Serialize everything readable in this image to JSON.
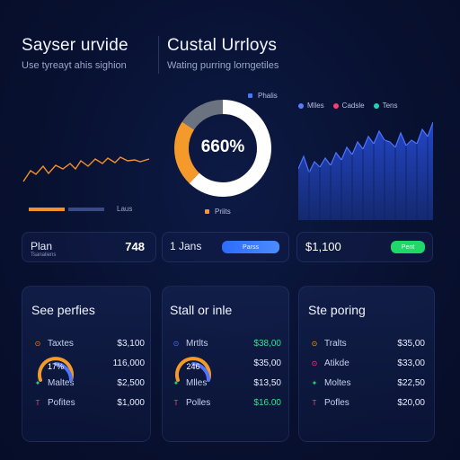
{
  "header": {
    "left_title": "Sayser urvide",
    "left_subtitle": "Use tyreayt ahis sighion",
    "right_title": "Custal Urrloys",
    "right_subtitle": "Wating purring lorngetiles"
  },
  "donut": {
    "center_label": "660%",
    "top_label": "Phalis",
    "bottom_label": "Priits",
    "colors": {
      "orange": "#f39a2a",
      "white": "#ffffff",
      "gray": "#6b7280"
    },
    "segments": [
      {
        "name": "white",
        "value": 0.62
      },
      {
        "name": "orange",
        "value": 0.22
      },
      {
        "name": "gray",
        "value": 0.16
      }
    ]
  },
  "left_chart": {
    "axis_label": "Laus",
    "color": "#f2902b",
    "bar_fill": 0.45
  },
  "area_chart": {
    "legend": [
      {
        "label": "Mlles",
        "color": "#5a7cff"
      },
      {
        "label": "Cadsle",
        "color": "#ff3d72"
      },
      {
        "label": "Tens",
        "color": "#23d4b0"
      }
    ],
    "fill_color": "#1c3aa8",
    "line_color": "#4e73ff"
  },
  "summary": {
    "item1": {
      "label": "Plan",
      "small": "Tsanaliens",
      "value": "748"
    },
    "item2": {
      "label": "1 Jans",
      "button": "Parss"
    },
    "item3": {
      "value": "$1,100",
      "button": "Pent"
    }
  },
  "cards": [
    {
      "title": "See perfies",
      "gauge_label": "17%",
      "rows": [
        {
          "icon": "⊙",
          "icon_color": "#ff7a2a",
          "label": "Taxtes",
          "value": "$3,100",
          "value_green": false
        },
        {
          "icon": "",
          "icon_color": "",
          "label": "",
          "value": "116,000",
          "value_green": false
        },
        {
          "icon": "✦",
          "icon_color": "#24d07a",
          "label": "Maltes",
          "value": "$2,500",
          "value_green": false
        },
        {
          "icon": "T",
          "icon_color": "#ff3d72",
          "label": "Pofites",
          "value": "$1,000",
          "value_green": false
        }
      ]
    },
    {
      "title": "Stall or inle",
      "gauge_label": "246",
      "rows": [
        {
          "icon": "⊙",
          "icon_color": "#4e73ff",
          "label": "Mrtlts",
          "value": "$38,00",
          "value_green": true
        },
        {
          "icon": "",
          "icon_color": "",
          "label": "",
          "value": "$35,00",
          "value_green": false
        },
        {
          "icon": "✦",
          "icon_color": "#24d07a",
          "label": "Mlles",
          "value": "$13,50",
          "value_green": false
        },
        {
          "icon": "T",
          "icon_color": "#ff3d72",
          "label": "Polles",
          "value": "$16.00",
          "value_green": true
        }
      ]
    },
    {
      "title": "Ste poring",
      "gauge_label": "",
      "rows": [
        {
          "icon": "⊙",
          "icon_color": "#f39a2a",
          "label": "Tralts",
          "value": "$35,00",
          "value_green": false
        },
        {
          "icon": "⊙",
          "icon_color": "#ff3d72",
          "label": "Atikde",
          "value": "$33,00",
          "value_green": false
        },
        {
          "icon": "✦",
          "icon_color": "#24d07a",
          "label": "Moltes",
          "value": "$22,50",
          "value_green": false
        },
        {
          "icon": "T",
          "icon_color": "#ff3d72",
          "label": "Pofles",
          "value": "$20,00",
          "value_green": false
        }
      ]
    }
  ]
}
